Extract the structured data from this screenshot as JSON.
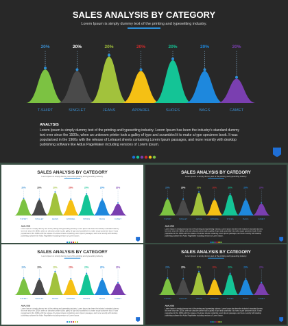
{
  "slide": {
    "title": "SALES ANALYSIS BY CATEGORY",
    "subtitle": "Lorem Ipsum is simply dummy text of the printing and typesetting industry.",
    "analysis_heading": "ANALYSIS",
    "analysis_lines": [
      "Lorem Ipsum is simply dummy text of the printing and typesetting industry. Lorem Ipsum has been the industry's standard dummy",
      "text ever since the 1500s, when an unknown printer took a galley of type and scrambled it to make a type specimen book. It was",
      "popularised in the 1960s with the release of Letraset sheets containing Lorem Ipsum passages, and more recently with desktop",
      "publishing software like Aldus PageMaker including versions of Lorem Ipsum."
    ]
  },
  "colors": {
    "dark_bg": "#282828",
    "light_bg": "#ffffff",
    "outer_frame": "#3a4f44",
    "accent_blue": "#1f6fd6",
    "category_label": "#3b8ed0"
  },
  "chart_data": {
    "type": "area",
    "categories": [
      "T-SHIRT",
      "SINGLET",
      "JEANS",
      "APPAREL",
      "SHOES",
      "BAGS",
      "CAMET"
    ],
    "labels": [
      "20%",
      "20%",
      "20%",
      "20%",
      "20%",
      "20%",
      "20%"
    ],
    "values": [
      20,
      20,
      20,
      20,
      20,
      20,
      20
    ],
    "colors": [
      "#7cc242",
      "#4a4a4a",
      "#a2c23c",
      "#f5c014",
      "#14c496",
      "#1e88dd",
      "#7a3fb0"
    ],
    "heights": [
      0.65,
      0.62,
      0.9,
      0.62,
      0.83,
      0.62,
      0.47
    ],
    "label_colors_dark": [
      "#3b8ed0",
      "#ffffff",
      "#a2c23c",
      "#d12b2b",
      "#14c496",
      "#1e88dd",
      "#7a3fb0"
    ],
    "label_colors_light": [
      "#3b8ed0",
      "#333333",
      "#a2c23c",
      "#d12b2b",
      "#14c496",
      "#1e88dd",
      "#7a3fb0"
    ]
  },
  "legend_dots": [
    "#1f6fd6",
    "#14c496",
    "#7a3fb0",
    "#d12b2b",
    "#f5c014",
    "#7cc242"
  ]
}
